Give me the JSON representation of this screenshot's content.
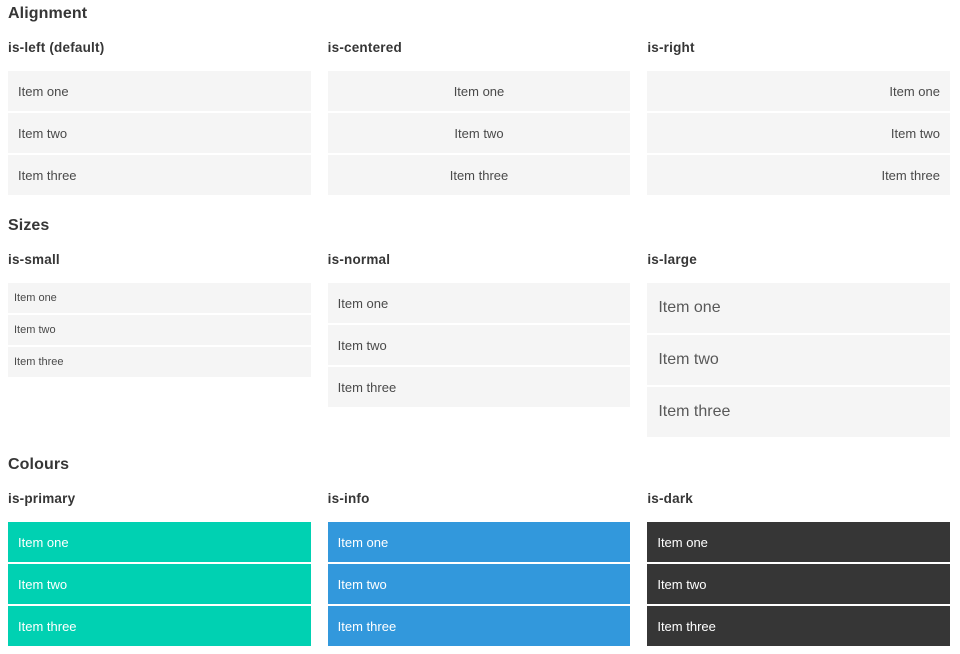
{
  "sections": {
    "alignment": {
      "title": "Alignment",
      "columns": [
        {
          "label": "is-left (default)"
        },
        {
          "label": "is-centered"
        },
        {
          "label": "is-right"
        }
      ]
    },
    "sizes": {
      "title": "Sizes",
      "columns": [
        {
          "label": "is-small"
        },
        {
          "label": "is-normal"
        },
        {
          "label": "is-large"
        }
      ]
    },
    "colours": {
      "title": "Colours",
      "columns": [
        {
          "label": "is-primary"
        },
        {
          "label": "is-info"
        },
        {
          "label": "is-dark"
        }
      ]
    }
  },
  "list_items": [
    "Item one",
    "Item two",
    "Item three"
  ],
  "colors": {
    "primary": "#00d1b2",
    "info": "#3298dc",
    "dark": "#363636",
    "item_bg": "#f5f5f5",
    "item_text": "#4a4a4a",
    "heading_text": "#363636",
    "colored_item_text": "#ffffff"
  }
}
